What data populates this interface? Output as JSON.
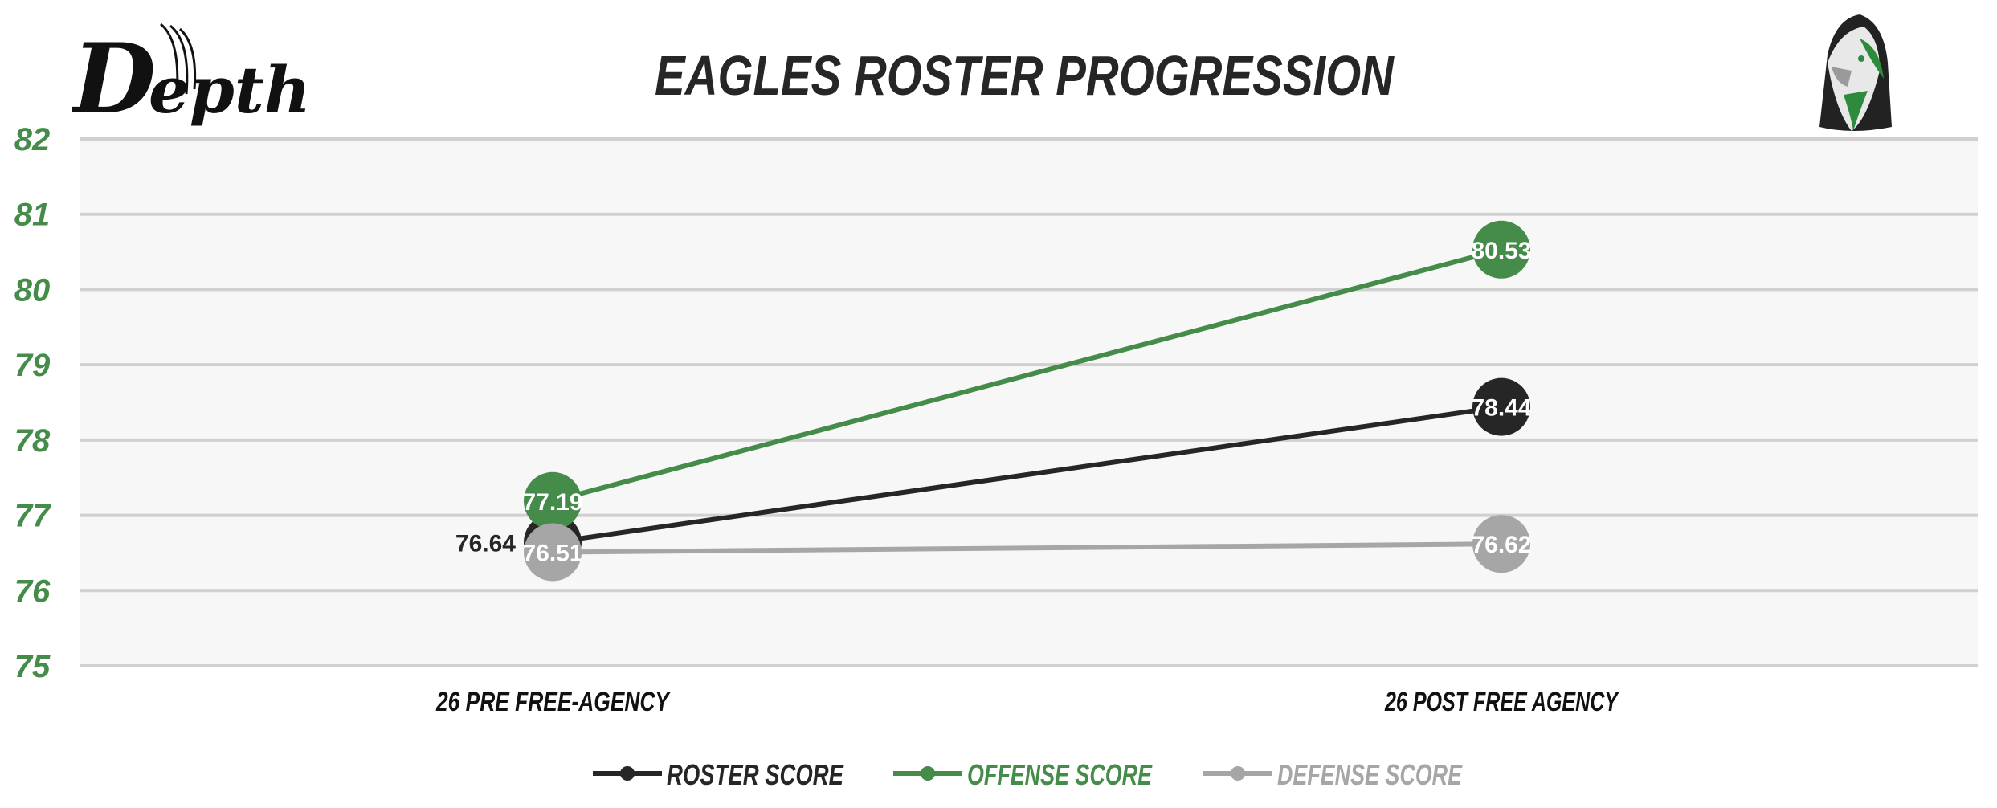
{
  "logo_text": "Depth",
  "chart_data": {
    "type": "line",
    "title": "EAGLES ROSTER PROGRESSION",
    "categories": [
      "26 PRE FREE-AGENCY",
      "26 POST FREE AGENCY"
    ],
    "ylim": [
      75,
      82
    ],
    "yticks": [
      "75",
      "76",
      "77",
      "78",
      "79",
      "80",
      "81",
      "82"
    ],
    "grid": true,
    "legend_position": "bottom",
    "series": [
      {
        "name": "ROSTER SCORE",
        "color": "#262626",
        "values": [
          76.64,
          78.44
        ],
        "labels": [
          "76.64",
          "78.44"
        ]
      },
      {
        "name": "OFFENSE SCORE",
        "color": "#458B4A",
        "values": [
          77.19,
          80.53
        ],
        "labels": [
          "77.19",
          "80.53"
        ]
      },
      {
        "name": "DEFENSE SCORE",
        "color": "#A6A6A6",
        "values": [
          76.51,
          76.62
        ],
        "labels": [
          "76.51",
          "76.62"
        ]
      }
    ],
    "colors": {
      "plot_background": "#F7F7F7",
      "gridline": "#D0D0D0",
      "ytick": "#458B4A",
      "title": "#262626"
    }
  }
}
